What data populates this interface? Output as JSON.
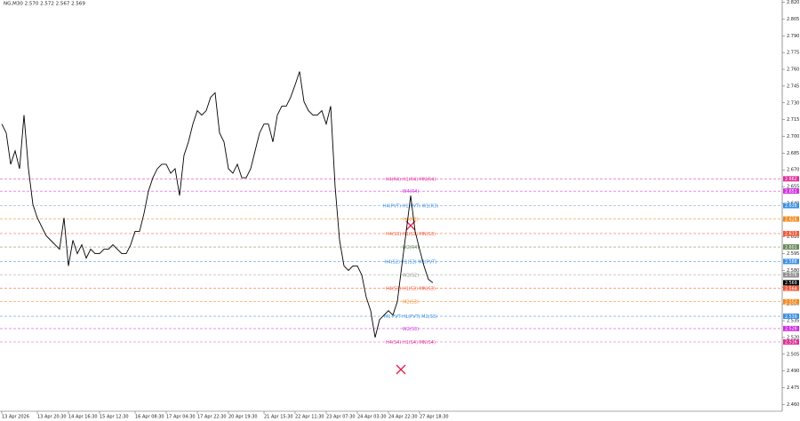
{
  "chart_data": {
    "type": "line",
    "title": "NG,M30 2.570 2.572 2.567 2.569",
    "categories": [
      "13 Apr 2026",
      null,
      null,
      null,
      null,
      null,
      null,
      null,
      "13 Apr 20:30",
      null,
      null,
      null,
      null,
      null,
      null,
      "14 Apr 16:30",
      null,
      null,
      null,
      null,
      null,
      null,
      "15 Apr 12:30",
      null,
      null,
      null,
      null,
      null,
      null,
      null,
      "16 Apr 08:30",
      null,
      null,
      null,
      null,
      null,
      null,
      "17 Apr 04:30",
      null,
      null,
      null,
      null,
      null,
      null,
      "17 Apr 22:30",
      null,
      null,
      null,
      null,
      null,
      null,
      "20 Apr 19:30",
      null,
      null,
      null,
      null,
      null,
      null,
      null,
      "21 Apr 15:30",
      null,
      null,
      null,
      null,
      null,
      null,
      "22 Apr 11:30",
      null,
      null,
      null,
      null,
      null,
      null,
      "23 Apr 07:30",
      null,
      null,
      null,
      null,
      null,
      null,
      "24 Apr 03:30",
      null,
      null,
      null,
      null,
      null,
      null,
      "24 Apr 22:30",
      null,
      null,
      null,
      null,
      null,
      null,
      "27 Apr 18:30",
      null,
      null,
      null
    ],
    "series": [
      {
        "name": "NG,M30",
        "color": "#000000",
        "values": [
          2.711,
          2.703,
          2.675,
          2.687,
          2.671,
          2.719,
          2.671,
          2.639,
          2.627,
          2.619,
          2.611,
          2.607,
          2.603,
          2.599,
          2.627,
          2.584,
          2.607,
          2.595,
          2.603,
          2.591,
          2.599,
          2.595,
          2.595,
          2.599,
          2.599,
          2.603,
          2.599,
          2.595,
          2.595,
          2.603,
          2.615,
          2.615,
          2.631,
          2.651,
          2.663,
          2.671,
          2.675,
          2.675,
          2.667,
          2.671,
          2.647,
          2.683,
          2.695,
          2.711,
          2.723,
          2.719,
          2.723,
          2.735,
          2.739,
          2.703,
          2.695,
          2.671,
          2.667,
          2.675,
          2.663,
          2.663,
          2.671,
          2.687,
          2.703,
          2.711,
          2.711,
          2.695,
          2.719,
          2.727,
          2.727,
          2.735,
          2.746,
          2.758,
          2.731,
          2.723,
          2.719,
          2.719,
          2.723,
          2.711,
          2.727,
          2.655,
          2.607,
          2.584,
          2.58,
          2.584,
          2.584,
          2.576,
          2.556,
          2.544,
          2.52,
          2.536,
          2.54,
          2.544,
          2.54,
          2.552,
          2.584,
          2.615,
          2.647,
          2.615,
          2.599,
          2.584,
          2.572,
          2.569
        ]
      }
    ],
    "ylim": [
      2.454,
      2.822
    ],
    "yticks": [
      {
        "value": 2.82,
        "label": "2.820"
      },
      2.805,
      {
        "value": 2.79,
        "label": "2.790"
      },
      2.775,
      {
        "value": 2.76,
        "label": "2.760"
      },
      2.745,
      {
        "value": 2.73,
        "label": "2.730"
      },
      2.715,
      {
        "value": 2.7,
        "label": "2.700"
      },
      2.685,
      {
        "value": 2.67,
        "label": "2.670"
      },
      2.655,
      {
        "value": 2.64,
        "label": "2.640"
      },
      2.625,
      {
        "value": 2.61,
        "label": "2.610"
      },
      2.595,
      {
        "value": 2.58,
        "label": "2.580"
      },
      2.565,
      {
        "value": 2.55,
        "label": "2.550"
      },
      2.535,
      {
        "value": 2.52,
        "label": "2.520"
      },
      2.505,
      {
        "value": 2.49,
        "label": "2.490"
      },
      2.475,
      {
        "value": 2.46,
        "label": "2.460"
      }
    ],
    "levels": [
      {
        "value": 2.662,
        "label": "H4(R4) H1(R4) MN(R4)",
        "color": "#e0309a"
      },
      {
        "value": 2.651,
        "label": "W4(R4)",
        "color": "#d030e0"
      },
      {
        "value": 2.638,
        "label": "H4(PVT) H1(PVT) W1(R3)",
        "color": "#3b8fe0"
      },
      {
        "value": 2.626,
        "label": "H4(R3)",
        "color": "#f08a20"
      },
      {
        "value": 2.613,
        "label": "H4(S3) H1(S3) MN(S3)",
        "color": "#f05a3a"
      },
      {
        "value": 2.601,
        "label": "W2(R4)",
        "color": "#6a8a5a"
      },
      {
        "value": 2.588,
        "label": "H4(S2) H1(S3) M1(PVT)",
        "color": "#3b8fe0"
      },
      {
        "value": 2.576,
        "label": "W2(S2)",
        "color": "#909090"
      },
      {
        "value": 2.564,
        "label": "H4(S3) H1(S3) MN(S3)",
        "color": "#f05a3a"
      },
      {
        "value": 2.552,
        "label": "M2(S3)",
        "color": "#f08a20"
      },
      {
        "value": 2.539,
        "label": "M1 PVT H1(PVT) M2(S3)",
        "color": "#3b8fe0"
      },
      {
        "value": 2.528,
        "label": "W2(S3)",
        "color": "#d030e0"
      },
      {
        "value": 2.516,
        "label": "H4(S4) H1(S4) MN(S4)",
        "color": "#e0309a"
      }
    ]
  }
}
